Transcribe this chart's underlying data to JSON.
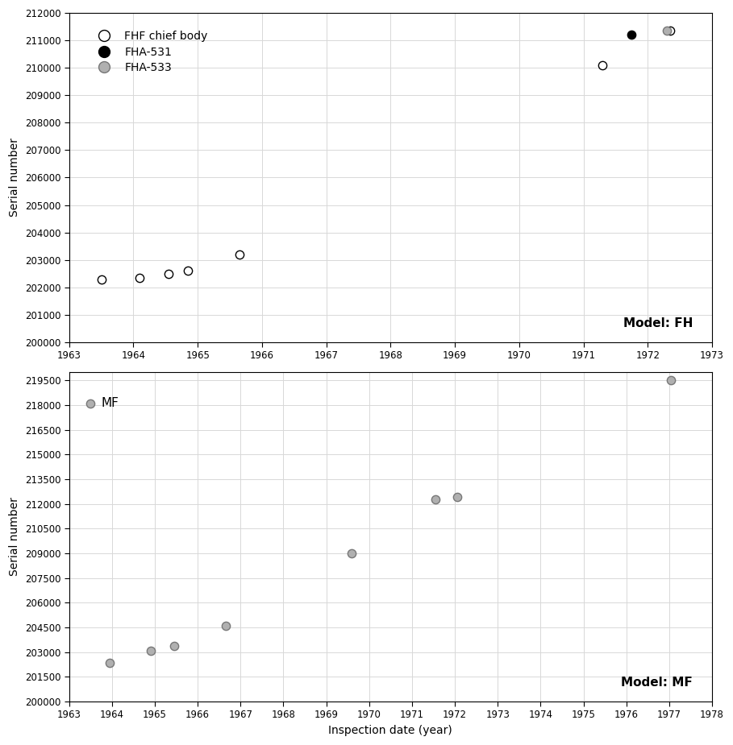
{
  "top_chart": {
    "title_annotation": "Model: FH",
    "ylim": [
      200000,
      212000
    ],
    "yticks": [
      200000,
      201000,
      202000,
      203000,
      204000,
      205000,
      206000,
      207000,
      208000,
      209000,
      210000,
      211000,
      212000
    ],
    "xlim": [
      1963,
      1973
    ],
    "xticks": [
      1963,
      1964,
      1965,
      1966,
      1967,
      1968,
      1969,
      1970,
      1971,
      1972,
      1973
    ],
    "fhf_x": [
      1963.5,
      1964.1,
      1964.55,
      1964.85,
      1965.65,
      1971.3,
      1972.35
    ],
    "fhf_y": [
      202300,
      202350,
      202500,
      202620,
      203200,
      210100,
      211350
    ],
    "fha531_x": [
      1971.75
    ],
    "fha531_y": [
      211200
    ],
    "fha533_x": [
      1972.3
    ],
    "fha533_y": [
      211350
    ],
    "legend_labels": [
      "FHF chief body",
      "FHA-531",
      "FHA-533"
    ]
  },
  "bottom_chart": {
    "title_annotation": "Model: MF",
    "label_annotation": "MF",
    "ylim": [
      200000,
      220000
    ],
    "yticks": [
      200000,
      201500,
      203000,
      204500,
      206000,
      207500,
      209000,
      210500,
      212000,
      213500,
      215000,
      216500,
      218000,
      219500
    ],
    "xlim": [
      1963,
      1978
    ],
    "xticks": [
      1963,
      1964,
      1965,
      1966,
      1967,
      1968,
      1969,
      1970,
      1971,
      1972,
      1973,
      1974,
      1975,
      1976,
      1977,
      1978
    ],
    "mf_x": [
      1963.5,
      1963.95,
      1964.9,
      1965.45,
      1966.65,
      1969.6,
      1971.55,
      1972.05,
      1977.05
    ],
    "mf_y": [
      218100,
      202350,
      203100,
      203350,
      204600,
      209000,
      212300,
      212400,
      219500
    ]
  },
  "xlabel": "Inspection date (year)",
  "ylabel": "Serial number",
  "marker_size": 55,
  "fhf_color": "white",
  "fhf_edgecolor": "black",
  "fha531_color": "black",
  "fha533_color": "#b0b0b0",
  "mf_color": "#b0b0b0",
  "mf_edgecolor": "#777777",
  "background_color": "white",
  "grid_color": "#d8d8d8",
  "annotation_fontsize": 11,
  "tick_fontsize": 8.5,
  "label_fontsize": 10,
  "legend_fontsize": 10
}
